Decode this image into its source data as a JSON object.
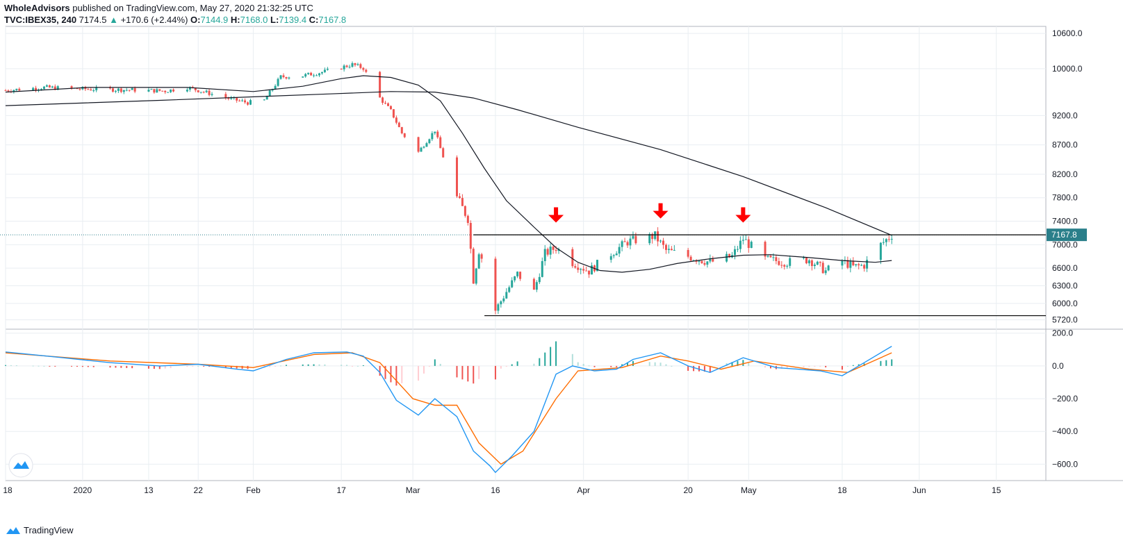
{
  "header": {
    "publisher": "WholeAdvisors",
    "published_text": "published on TradingView.com, May 27, 2020 21:32:25 UTC",
    "symbol": "TVC:IBEX35, 240",
    "last": "7174.5",
    "change_arrow": "▲",
    "change": "+170.6 (+2.44%)",
    "o_label": "O:",
    "o_value": "7144.9",
    "h_label": "H:",
    "h_value": "7168.0",
    "l_label": "L:",
    "l_value": "7139.4",
    "c_label": "C:",
    "c_value": "7167.8"
  },
  "footer": {
    "brand": "TradingView"
  },
  "colors": {
    "up": "#26a69a",
    "down": "#ef5350",
    "up_light": "#b2dfdb",
    "down_light": "#ffcdd2",
    "macd": "#2196f3",
    "signal": "#ff6d00",
    "arrow": "#ff0000",
    "grid": "#e9eef2",
    "ma": "#131722",
    "price_label": "#2a7f8a"
  },
  "chart_data": [
    {
      "type": "candlestick",
      "title": "TVC:IBEX35, 240",
      "y_ticks": [
        "10600.0",
        "10000.0",
        "9200.0",
        "8700.0",
        "8200.0",
        "7800.0",
        "7400.0",
        "7000.0",
        "6600.0",
        "6300.0",
        "6000.0",
        "5720.0"
      ],
      "y_tick_values": [
        10600,
        10000,
        9200,
        8700,
        8200,
        7800,
        7400,
        7000,
        6600,
        6300,
        6000,
        5720
      ],
      "ylim": [
        5560,
        10720
      ],
      "x_ticks": [
        "18",
        "2020",
        "13",
        "22",
        "Feb",
        "17",
        "Mar",
        "16",
        "Apr",
        "20",
        "May",
        "18",
        "Jun",
        "15"
      ],
      "x_tick_dates": [
        "2019-12-18",
        "2020-01-01",
        "2020-01-13",
        "2020-01-22",
        "2020-02-01",
        "2020-02-17",
        "2020-03-01",
        "2020-03-16",
        "2020-04-01",
        "2020-04-20",
        "2020-05-01",
        "2020-05-18",
        "2020-06-01",
        "2020-06-15"
      ],
      "xlim": [
        "2019-12-18",
        "2020-06-24"
      ],
      "current_price": "7167.8",
      "current_price_value": 7167.8,
      "last_date": "2020-05-27",
      "close_path": [
        [
          "2019-12-18",
          9630
        ],
        [
          "2019-12-25",
          9680
        ],
        [
          "2020-01-02",
          9650
        ],
        [
          "2020-01-09",
          9640
        ],
        [
          "2020-01-16",
          9620
        ],
        [
          "2020-01-20",
          9680
        ],
        [
          "2020-01-24",
          9580
        ],
        [
          "2020-01-28",
          9480
        ],
        [
          "2020-01-31",
          9420
        ],
        [
          "2020-02-03",
          9460
        ],
        [
          "2020-02-06",
          9860
        ],
        [
          "2020-02-10",
          9880
        ],
        [
          "2020-02-14",
          9950
        ],
        [
          "2020-02-19",
          10070
        ],
        [
          "2020-02-21",
          10010
        ],
        [
          "2020-02-24",
          9500
        ],
        [
          "2020-02-26",
          9280
        ],
        [
          "2020-02-28",
          8900
        ],
        [
          "2020-03-02",
          8580
        ],
        [
          "2020-03-05",
          8950
        ],
        [
          "2020-03-06",
          8640
        ],
        [
          "2020-03-09",
          7800
        ],
        [
          "2020-03-11",
          7450
        ],
        [
          "2020-03-12",
          6400
        ],
        [
          "2020-03-13",
          6900
        ],
        [
          "2020-03-15",
          6400
        ],
        [
          "2020-03-16",
          5880
        ],
        [
          "2020-03-18",
          6200
        ],
        [
          "2020-03-20",
          6500
        ],
        [
          "2020-03-23",
          6200
        ],
        [
          "2020-03-25",
          6850
        ],
        [
          "2020-03-27",
          6950
        ],
        [
          "2020-03-30",
          6700
        ],
        [
          "2020-04-02",
          6550
        ],
        [
          "2020-04-06",
          6850
        ],
        [
          "2020-04-09",
          7050
        ],
        [
          "2020-04-14",
          7150
        ],
        [
          "2020-04-16",
          6900
        ],
        [
          "2020-04-20",
          6800
        ],
        [
          "2020-04-24",
          6700
        ],
        [
          "2020-04-28",
          6800
        ],
        [
          "2020-04-30",
          7100
        ],
        [
          "2020-05-04",
          6750
        ],
        [
          "2020-05-08",
          6700
        ],
        [
          "2020-05-12",
          6750
        ],
        [
          "2020-05-15",
          6550
        ],
        [
          "2020-05-18",
          6720
        ],
        [
          "2020-05-20",
          6620
        ],
        [
          "2020-05-22",
          6650
        ],
        [
          "2020-05-25",
          7000
        ],
        [
          "2020-05-27",
          7168
        ]
      ],
      "ma_fast": [
        [
          "2019-12-18",
          9600
        ],
        [
          "2020-01-02",
          9680
        ],
        [
          "2020-01-20",
          9680
        ],
        [
          "2020-02-01",
          9610
        ],
        [
          "2020-02-10",
          9700
        ],
        [
          "2020-02-17",
          9830
        ],
        [
          "2020-02-21",
          9880
        ],
        [
          "2020-02-26",
          9850
        ],
        [
          "2020-03-02",
          9720
        ],
        [
          "2020-03-06",
          9450
        ],
        [
          "2020-03-10",
          8900
        ],
        [
          "2020-03-14",
          8300
        ],
        [
          "2020-03-18",
          7750
        ],
        [
          "2020-03-23",
          7300
        ],
        [
          "2020-03-27",
          6950
        ],
        [
          "2020-03-31",
          6700
        ],
        [
          "2020-04-04",
          6560
        ],
        [
          "2020-04-08",
          6530
        ],
        [
          "2020-04-13",
          6580
        ],
        [
          "2020-04-18",
          6680
        ],
        [
          "2020-04-24",
          6760
        ],
        [
          "2020-04-30",
          6820
        ],
        [
          "2020-05-05",
          6830
        ],
        [
          "2020-05-12",
          6780
        ],
        [
          "2020-05-18",
          6730
        ],
        [
          "2020-05-24",
          6700
        ],
        [
          "2020-05-27",
          6730
        ]
      ],
      "ma_slow": [
        [
          "2019-12-18",
          9370
        ],
        [
          "2020-01-15",
          9460
        ],
        [
          "2020-02-15",
          9570
        ],
        [
          "2020-02-26",
          9610
        ],
        [
          "2020-03-05",
          9600
        ],
        [
          "2020-03-12",
          9500
        ],
        [
          "2020-03-20",
          9300
        ],
        [
          "2020-03-31",
          9000
        ],
        [
          "2020-04-15",
          8620
        ],
        [
          "2020-04-30",
          8160
        ],
        [
          "2020-05-15",
          7630
        ],
        [
          "2020-05-27",
          7160
        ]
      ],
      "resistance": {
        "value": 7167.8,
        "from": "2020-03-12",
        "to": "2020-06-24"
      },
      "support": {
        "value": 5790,
        "from": "2020-03-14",
        "to": "2020-06-24"
      },
      "arrows": [
        {
          "date": "2020-03-27",
          "value": 7400
        },
        {
          "date": "2020-04-15",
          "value": 7470
        },
        {
          "date": "2020-04-30",
          "value": 7400
        }
      ]
    },
    {
      "type": "macd",
      "y_ticks": [
        "200.0",
        "0.0",
        "−200.0",
        "−400.0",
        "−600.0"
      ],
      "y_tick_values": [
        200,
        0,
        -200,
        -400,
        -600
      ],
      "ylim": [
        -700,
        220
      ],
      "macd": [
        [
          "2019-12-18",
          85
        ],
        [
          "2019-12-27",
          55
        ],
        [
          "2020-01-06",
          20
        ],
        [
          "2020-01-15",
          0
        ],
        [
          "2020-01-22",
          10
        ],
        [
          "2020-01-29",
          -20
        ],
        [
          "2020-02-01",
          -30
        ],
        [
          "2020-02-07",
          40
        ],
        [
          "2020-02-12",
          80
        ],
        [
          "2020-02-18",
          85
        ],
        [
          "2020-02-21",
          60
        ],
        [
          "2020-02-24",
          -40
        ],
        [
          "2020-02-27",
          -210
        ],
        [
          "2020-03-02",
          -300
        ],
        [
          "2020-03-05",
          -200
        ],
        [
          "2020-03-09",
          -310
        ],
        [
          "2020-03-12",
          -520
        ],
        [
          "2020-03-15",
          -610
        ],
        [
          "2020-03-16",
          -650
        ],
        [
          "2020-03-19",
          -550
        ],
        [
          "2020-03-23",
          -400
        ],
        [
          "2020-03-27",
          -50
        ],
        [
          "2020-03-30",
          0
        ],
        [
          "2020-04-03",
          -30
        ],
        [
          "2020-04-07",
          -20
        ],
        [
          "2020-04-10",
          40
        ],
        [
          "2020-04-15",
          80
        ],
        [
          "2020-04-20",
          0
        ],
        [
          "2020-04-24",
          -40
        ],
        [
          "2020-04-30",
          50
        ],
        [
          "2020-05-06",
          -10
        ],
        [
          "2020-05-14",
          -30
        ],
        [
          "2020-05-18",
          -60
        ],
        [
          "2020-05-22",
          20
        ],
        [
          "2020-05-27",
          120
        ]
      ],
      "signal": [
        [
          "2019-12-18",
          80
        ],
        [
          "2020-01-06",
          30
        ],
        [
          "2020-01-22",
          10
        ],
        [
          "2020-02-01",
          -10
        ],
        [
          "2020-02-12",
          70
        ],
        [
          "2020-02-19",
          80
        ],
        [
          "2020-02-24",
          20
        ],
        [
          "2020-03-01",
          -200
        ],
        [
          "2020-03-05",
          -240
        ],
        [
          "2020-03-09",
          -240
        ],
        [
          "2020-03-13",
          -470
        ],
        [
          "2020-03-17",
          -600
        ],
        [
          "2020-03-21",
          -520
        ],
        [
          "2020-03-27",
          -200
        ],
        [
          "2020-03-31",
          -30
        ],
        [
          "2020-04-08",
          -10
        ],
        [
          "2020-04-15",
          60
        ],
        [
          "2020-04-20",
          30
        ],
        [
          "2020-04-26",
          -20
        ],
        [
          "2020-05-02",
          30
        ],
        [
          "2020-05-12",
          -20
        ],
        [
          "2020-05-19",
          -40
        ],
        [
          "2020-05-27",
          80
        ]
      ]
    }
  ]
}
